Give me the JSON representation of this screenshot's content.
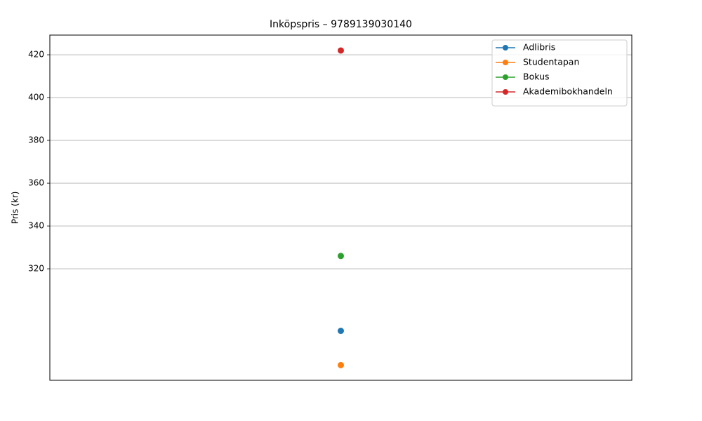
{
  "chart_data": {
    "type": "line",
    "title": "Inköpspris – 9789139030140",
    "y_label": "Pris (kr)",
    "categories": [
      null
    ],
    "series": [
      {
        "name": "Adlibris",
        "color": "#1f77b4",
        "values": [
          291
        ]
      },
      {
        "name": "Studentapan",
        "color": "#ff7f0e",
        "values": [
          275
        ]
      },
      {
        "name": "Bokus",
        "color": "#2ca02c",
        "values": [
          326
        ]
      },
      {
        "name": "Akademibokhandeln",
        "color": "#d62728",
        "values": [
          422
        ]
      }
    ],
    "ylim": [
      267.9,
      429.2
    ],
    "yticks": [
      320,
      340,
      360,
      380,
      400,
      420
    ],
    "grid": "y",
    "legend": "upper right"
  }
}
